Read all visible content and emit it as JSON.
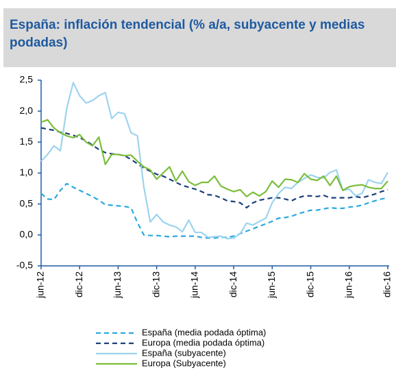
{
  "chart_data": {
    "type": "line",
    "title": "España: inflación tendencial (% a/a, subyacente y medias podadas)",
    "categories": [
      "jun-12",
      null,
      null,
      null,
      null,
      null,
      "dic-12",
      null,
      null,
      null,
      null,
      null,
      "jun-13",
      null,
      null,
      null,
      null,
      null,
      "dic-13",
      null,
      null,
      null,
      null,
      null,
      "jun-14",
      null,
      null,
      null,
      null,
      null,
      "dic-14",
      null,
      null,
      null,
      null,
      null,
      "jun-15",
      null,
      null,
      null,
      null,
      null,
      "dic-15",
      null,
      null,
      null,
      null,
      null,
      "jun-16",
      null,
      null,
      null,
      null,
      null,
      "dic-16"
    ],
    "ylim": [
      -0.5,
      2.5
    ],
    "yticks": [
      {
        "value": -0.5,
        "label": "-0,5"
      },
      {
        "value": 0,
        "label": "0,0"
      },
      {
        "value": 0.5,
        "label": "0,5"
      },
      {
        "value": 1,
        "label": "1,0"
      },
      {
        "value": 1.5,
        "label": "1,5"
      },
      {
        "value": 2,
        "label": "2,0"
      },
      {
        "value": 2.5,
        "label": "2,5"
      }
    ],
    "series": [
      {
        "name": "España (media podada óptima)",
        "color": "#29a8e0",
        "dashed": true,
        "values": [
          0.67,
          0.58,
          0.57,
          0.72,
          0.83,
          0.77,
          0.72,
          0.67,
          0.62,
          0.56,
          0.49,
          0.48,
          0.47,
          0.46,
          0.44,
          0.2,
          0.0,
          -0.01,
          -0.01,
          -0.02,
          -0.03,
          -0.02,
          -0.02,
          -0.02,
          -0.02,
          -0.04,
          -0.05,
          -0.05,
          -0.04,
          -0.04,
          -0.02,
          0.02,
          0.06,
          0.1,
          0.14,
          0.18,
          0.22,
          0.27,
          0.28,
          0.3,
          0.34,
          0.37,
          0.4,
          0.4,
          0.42,
          0.44,
          0.43,
          0.43,
          0.45,
          0.46,
          0.48,
          0.52,
          0.55,
          0.58,
          0.6
        ]
      },
      {
        "name": "Europa (media podada óptima)",
        "color": "#1b3f7a",
        "dashed": true,
        "values": [
          1.73,
          1.71,
          1.69,
          1.66,
          1.64,
          1.61,
          1.57,
          1.52,
          1.45,
          1.38,
          1.33,
          1.31,
          1.3,
          1.28,
          1.22,
          1.15,
          1.08,
          1.03,
          0.98,
          0.95,
          0.9,
          0.85,
          0.8,
          0.77,
          0.74,
          0.7,
          0.65,
          0.64,
          0.6,
          0.55,
          0.54,
          0.52,
          0.44,
          0.52,
          0.56,
          0.58,
          0.6,
          0.6,
          0.58,
          0.55,
          0.6,
          0.63,
          0.63,
          0.62,
          0.64,
          0.6,
          0.6,
          0.6,
          0.6,
          0.62,
          0.6,
          0.63,
          0.66,
          0.7,
          0.73
        ]
      },
      {
        "name": "España (subyacente)",
        "color": "#9dd3ef",
        "dashed": false,
        "values": [
          1.19,
          1.3,
          1.44,
          1.36,
          2.05,
          2.46,
          2.25,
          2.13,
          2.17,
          2.25,
          2.3,
          1.88,
          1.98,
          1.96,
          1.65,
          1.6,
          0.78,
          0.21,
          0.33,
          0.21,
          0.16,
          0.13,
          0.05,
          0.24,
          0.04,
          0.04,
          -0.04,
          -0.03,
          -0.02,
          -0.06,
          -0.05,
          0.02,
          0.19,
          0.16,
          0.22,
          0.27,
          0.52,
          0.67,
          0.77,
          0.75,
          0.85,
          0.91,
          0.97,
          0.93,
          0.92,
          1.01,
          1.05,
          0.72,
          0.74,
          0.63,
          0.67,
          0.89,
          0.85,
          0.83,
          1.01
        ]
      },
      {
        "name": "Europa (Subyacente)",
        "color": "#7bbd3a",
        "dashed": false,
        "values": [
          1.82,
          1.86,
          1.73,
          1.65,
          1.6,
          1.57,
          1.62,
          1.5,
          1.44,
          1.58,
          1.14,
          1.3,
          1.3,
          1.28,
          1.29,
          1.19,
          1.1,
          1.05,
          0.9,
          1.0,
          1.1,
          0.87,
          1.03,
          0.86,
          0.8,
          0.85,
          0.85,
          0.95,
          0.79,
          0.74,
          0.7,
          0.73,
          0.62,
          0.69,
          0.63,
          0.7,
          0.87,
          0.77,
          0.9,
          0.89,
          0.85,
          0.99,
          0.9,
          0.88,
          0.95,
          0.8,
          0.95,
          0.72,
          0.78,
          0.8,
          0.81,
          0.77,
          0.75,
          0.75,
          0.87
        ]
      }
    ]
  }
}
